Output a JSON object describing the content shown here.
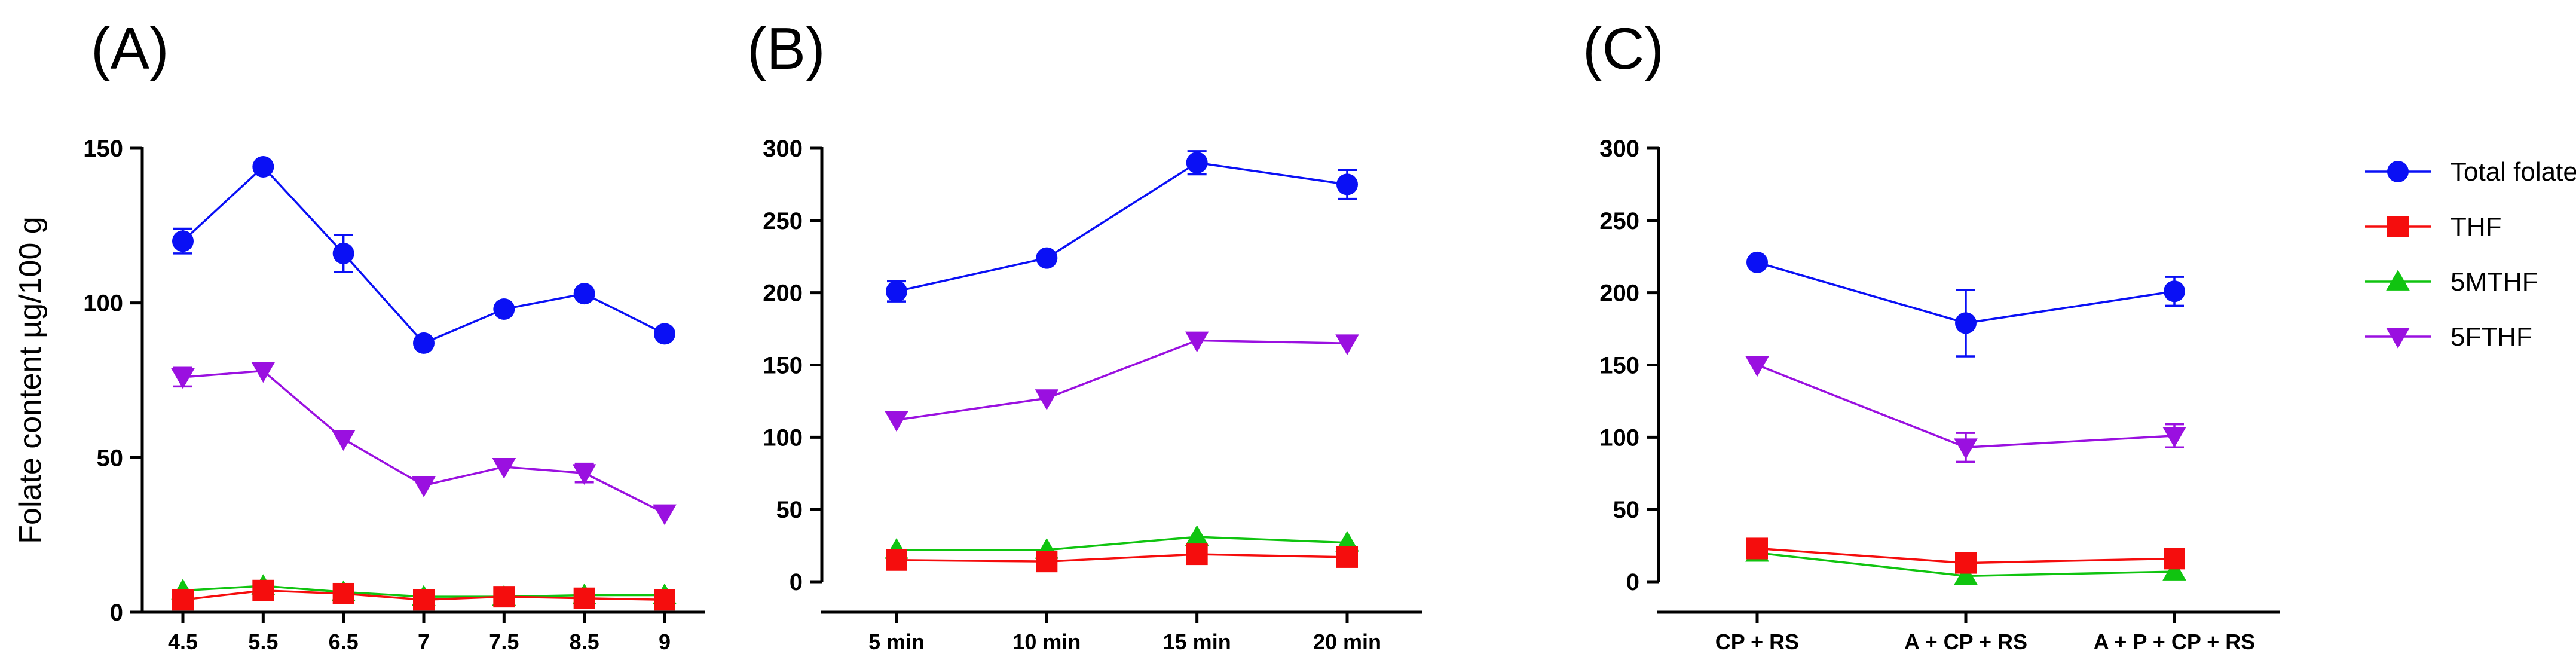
{
  "legend": [
    {
      "name": "Total folate",
      "color": "#0a10f5",
      "marker": "circle"
    },
    {
      "name": "THF",
      "color": "#f50d0d",
      "marker": "square"
    },
    {
      "name": "5MTHF",
      "color": "#10c410",
      "marker": "triangle-up"
    },
    {
      "name": "5FTHF",
      "color": "#9a10e0",
      "marker": "triangle-down"
    }
  ],
  "chart_data": [
    {
      "type": "line",
      "panel": "(A)",
      "ylabel": "Folate content µg/100 g",
      "xlabel": "",
      "ylim": [
        0,
        150
      ],
      "yticks": [
        0,
        50,
        100,
        150
      ],
      "categories": [
        "4.5",
        "5.5",
        "6.5",
        "7",
        "7.5",
        "8.5",
        "9"
      ],
      "series": [
        {
          "name": "Total folate",
          "values": [
            120,
            144,
            116,
            87,
            98,
            103,
            90
          ],
          "errors": [
            4,
            0,
            6,
            0,
            0,
            0,
            0
          ]
        },
        {
          "name": "THF",
          "values": [
            4,
            7,
            6,
            4,
            5,
            4.5,
            4
          ],
          "errors": [
            0,
            0,
            0,
            0,
            0,
            0,
            0
          ]
        },
        {
          "name": "5MTHF",
          "values": [
            7,
            8.5,
            6.5,
            5,
            5,
            5.5,
            5.5
          ],
          "errors": [
            0,
            0,
            0,
            0,
            0,
            0,
            0
          ]
        },
        {
          "name": "5FTHF",
          "values": [
            76,
            78,
            56,
            41,
            47,
            45,
            32
          ],
          "errors": [
            3,
            0,
            0,
            0,
            0,
            3,
            0
          ]
        }
      ]
    },
    {
      "type": "line",
      "panel": "(B)",
      "ylabel": "",
      "xlabel": "",
      "ylim": [
        0,
        300
      ],
      "yticks": [
        0,
        50,
        100,
        150,
        200,
        250,
        300
      ],
      "categories": [
        "5 min",
        "10 min",
        "15 min",
        "20 min"
      ],
      "series": [
        {
          "name": "Total folate",
          "values": [
            201,
            224,
            290,
            275
          ],
          "errors": [
            7,
            0,
            8,
            10
          ]
        },
        {
          "name": "THF",
          "values": [
            15,
            14,
            19,
            17
          ],
          "errors": [
            0,
            0,
            0,
            0
          ]
        },
        {
          "name": "5MTHF",
          "values": [
            22,
            22,
            31,
            27
          ],
          "errors": [
            0,
            0,
            0,
            0
          ]
        },
        {
          "name": "5FTHF",
          "values": [
            112,
            127,
            167,
            165
          ],
          "errors": [
            0,
            0,
            0,
            0
          ]
        }
      ]
    },
    {
      "type": "line",
      "panel": "(C)",
      "ylabel": "",
      "xlabel": "",
      "ylim": [
        0,
        300
      ],
      "yticks": [
        0,
        50,
        100,
        150,
        200,
        250,
        300
      ],
      "categories": [
        "CP + RS",
        "A + CP + RS",
        "A + P + CP + RS"
      ],
      "series": [
        {
          "name": "Total folate",
          "values": [
            221,
            179,
            201
          ],
          "errors": [
            0,
            23,
            10
          ]
        },
        {
          "name": "THF",
          "values": [
            23,
            13,
            16
          ],
          "errors": [
            0,
            0,
            0
          ]
        },
        {
          "name": "5MTHF",
          "values": [
            20,
            4,
            7
          ],
          "errors": [
            0,
            0,
            0
          ]
        },
        {
          "name": "5FTHF",
          "values": [
            150,
            93,
            101
          ],
          "errors": [
            0,
            10,
            8
          ]
        }
      ]
    }
  ]
}
